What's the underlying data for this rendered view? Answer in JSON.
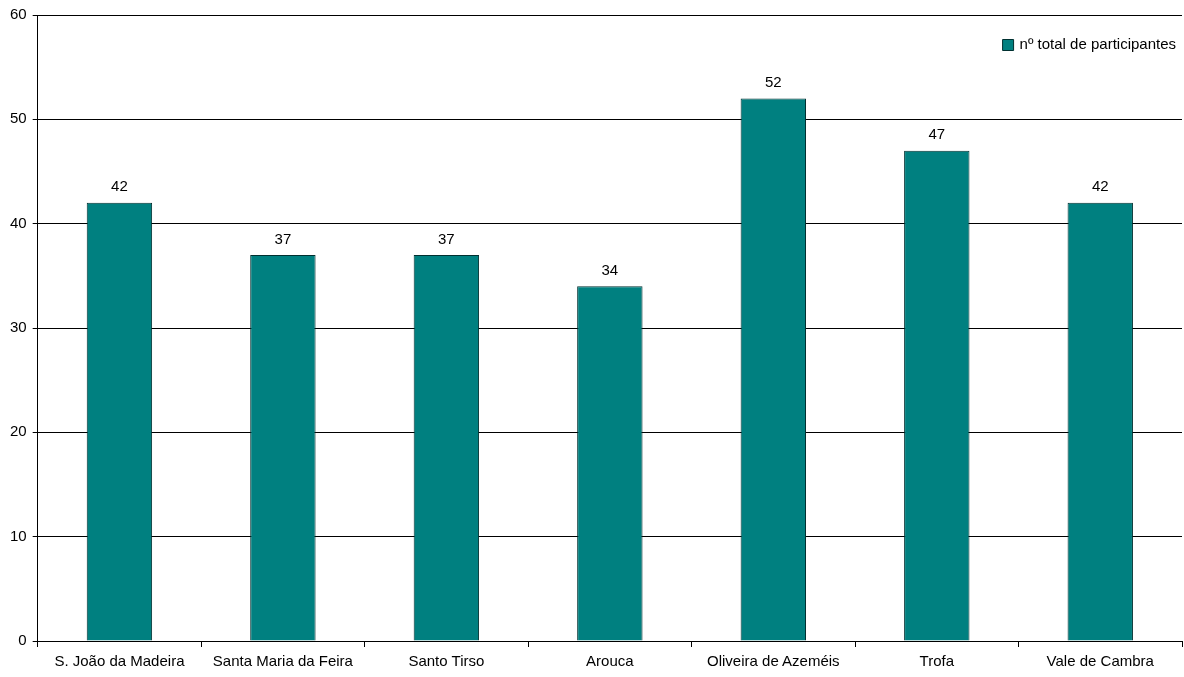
{
  "chart_data": {
    "type": "bar",
    "categories": [
      "S. João da Madeira",
      "Santa Maria da Feira",
      "Santo Tirso",
      "Arouca",
      "Oliveira de Azeméis",
      "Trofa",
      "Vale de Cambra"
    ],
    "series": [
      {
        "name": "nº total de participantes",
        "color": "#008080",
        "values": [
          42,
          37,
          37,
          34,
          52,
          47,
          42
        ]
      }
    ],
    "ylim": [
      0,
      60
    ],
    "yticks": [
      0,
      10,
      20,
      30,
      40,
      50,
      60
    ],
    "grid": "y",
    "legend": "top right",
    "data_labels": true
  }
}
